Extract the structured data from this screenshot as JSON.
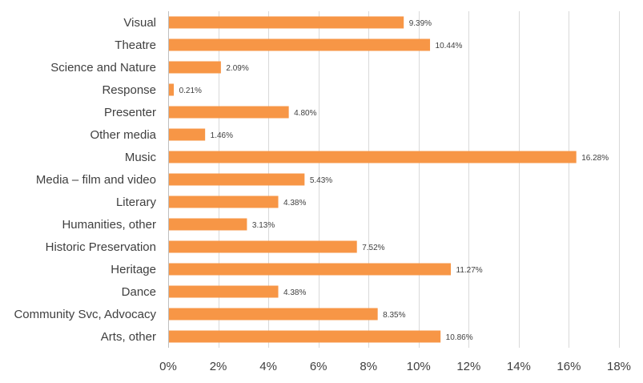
{
  "chart_data": {
    "type": "bar",
    "orientation": "horizontal",
    "categories": [
      "Visual",
      "Theatre",
      "Science and Nature",
      "Response",
      "Presenter",
      "Other media",
      "Music",
      "Media – film and video",
      "Literary",
      "Humanities, other",
      "Historic Preservation",
      "Heritage",
      "Dance",
      "Community Svc, Advocacy",
      "Arts, other"
    ],
    "values": [
      9.39,
      10.44,
      2.09,
      0.21,
      4.8,
      1.46,
      16.28,
      5.43,
      4.38,
      3.13,
      7.52,
      11.27,
      4.38,
      8.35,
      10.86
    ],
    "data_labels": [
      "9.39%",
      "10.44%",
      "2.09%",
      "0.21%",
      "4.80%",
      "1.46%",
      "16.28%",
      "5.43%",
      "4.38%",
      "3.13%",
      "7.52%",
      "11.27%",
      "4.38%",
      "8.35%",
      "10.86%"
    ],
    "xlim": [
      0,
      18
    ],
    "x_ticks": [
      0,
      2,
      4,
      6,
      8,
      10,
      12,
      14,
      16,
      18
    ],
    "x_tick_labels": [
      "0%",
      "2%",
      "4%",
      "6%",
      "8%",
      "10%",
      "12%",
      "14%",
      "16%",
      "18%"
    ],
    "grid": "vertical",
    "legend": "none",
    "bar_color": "#f79646"
  }
}
